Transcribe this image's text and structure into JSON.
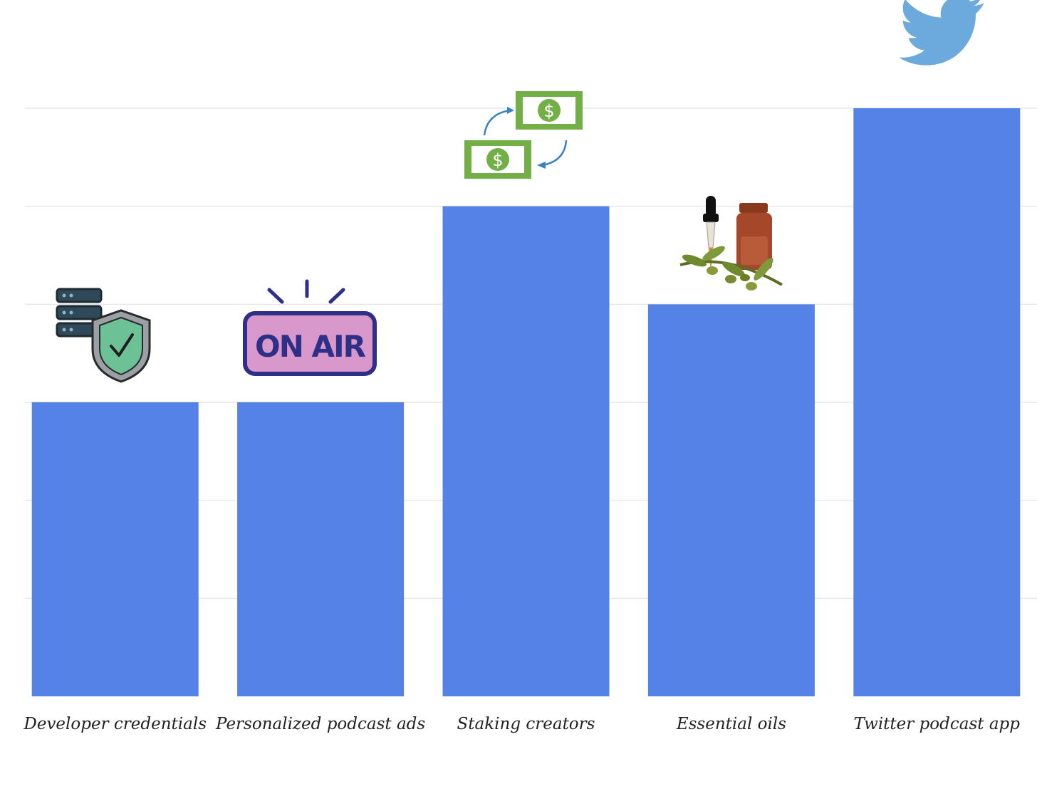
{
  "chart_data": {
    "type": "bar",
    "title": "",
    "xlabel": "",
    "ylabel": "",
    "categories": [
      "Developer credentials",
      "Personalized podcast ads",
      "Staking creators",
      "Essential oils",
      "Twitter podcast app"
    ],
    "values": [
      3,
      3,
      5,
      4,
      6
    ],
    "ylim": [
      0,
      6
    ],
    "grid": true,
    "legend": "none",
    "colors": {
      "bar": "#5582E6",
      "grid": "#E8E8E8",
      "label": "#222222"
    },
    "icons": [
      "server-shield-icon",
      "on-air-sign-icon",
      "money-exchange-icon",
      "essential-oil-bottle-icon",
      "twitter-bird-icon"
    ],
    "icon_text": {
      "on_air": "ON AIR",
      "dollar": "$"
    }
  }
}
